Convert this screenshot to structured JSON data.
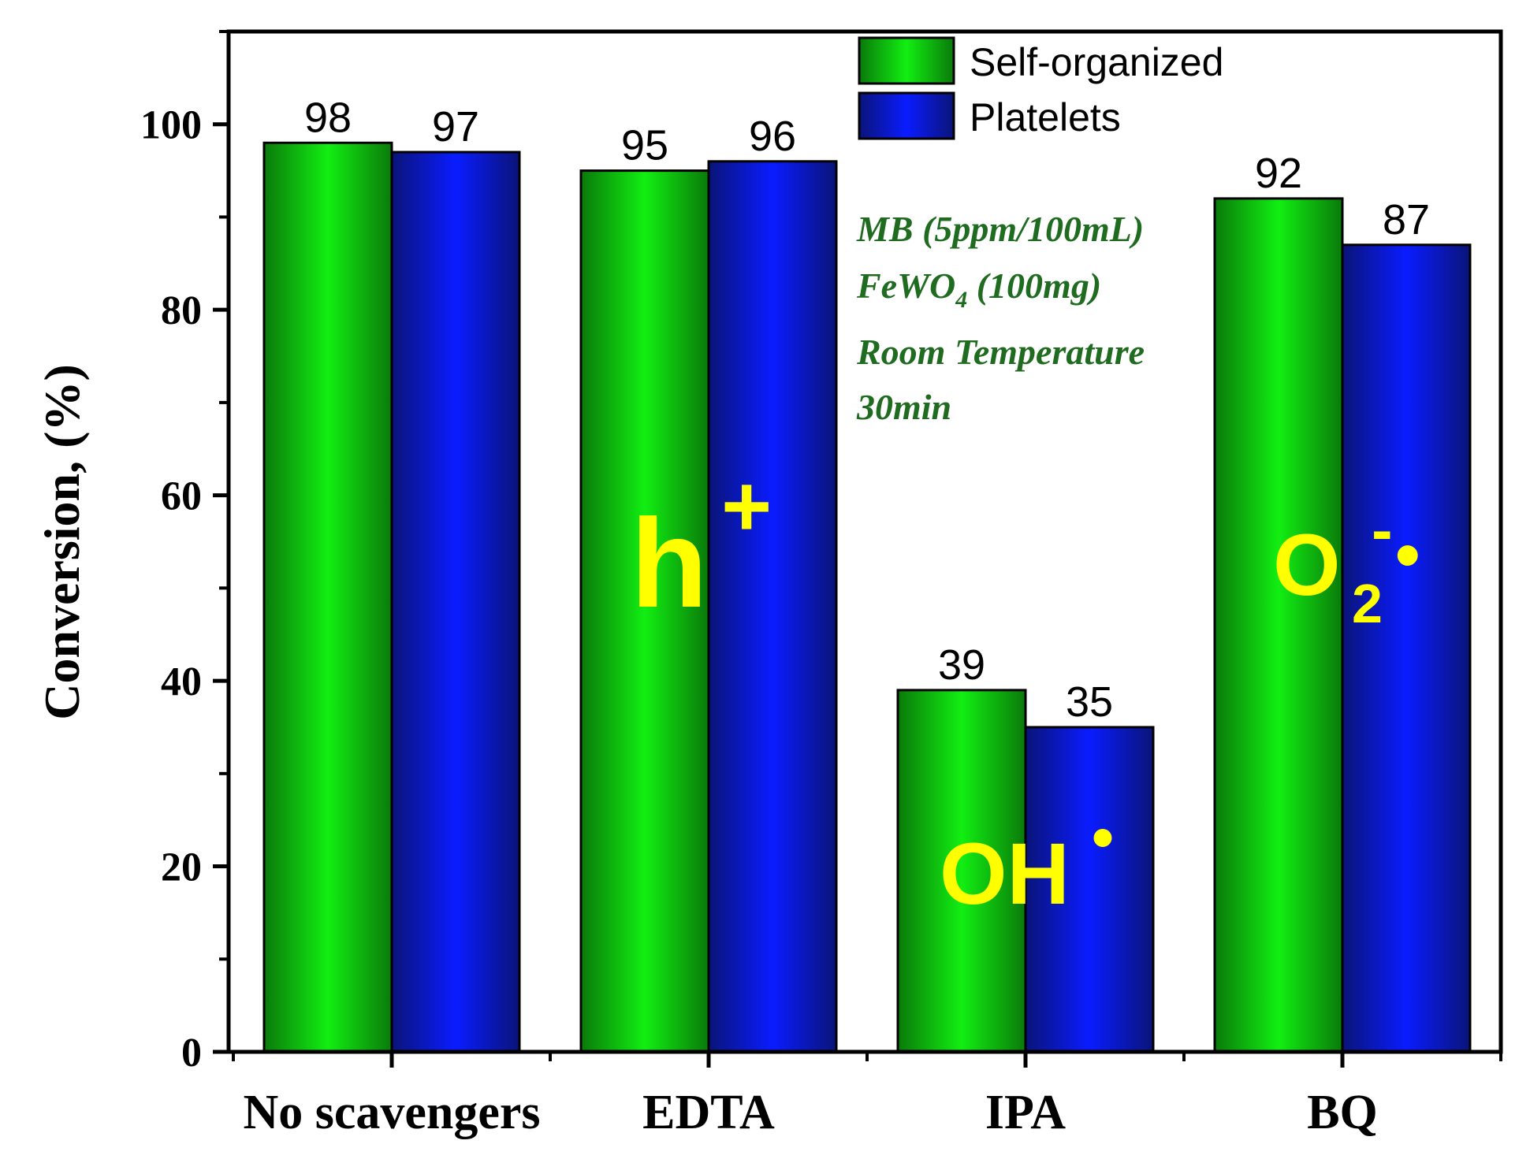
{
  "chart_data": {
    "type": "bar",
    "categories": [
      "No scavengers",
      "EDTA",
      "IPA",
      "BQ"
    ],
    "series": [
      {
        "name": "Self-organized",
        "values": [
          98,
          95,
          39,
          92
        ]
      },
      {
        "name": "Platelets",
        "values": [
          97,
          96,
          35,
          87
        ]
      }
    ],
    "data_labels": [
      [
        "98",
        "95",
        "39",
        "92"
      ],
      [
        "97",
        "96",
        "35",
        "87"
      ]
    ],
    "xlabel": "",
    "ylabel": "Conversion, (%)",
    "ylim": [
      0,
      110
    ],
    "yticks": [
      0,
      20,
      40,
      60,
      80,
      100
    ],
    "grid": false,
    "legend_position": "top-right",
    "colors": {
      "self_organized": "#0fdc0f",
      "self_organized_edge": "#0a7a0a",
      "platelets": "#0a1cf5",
      "platelets_edge": "#0a1478",
      "conditions_text": "#1f6b1f",
      "species_text": "#ffff00"
    },
    "annotations": {
      "conditions": [
        "MB (5ppm/100mL)",
        "FeWO",
        "4",
        " (100mg)",
        "Room Temperature",
        "30min"
      ],
      "species_edta": {
        "base": "h",
        "sup": "+"
      },
      "species_ipa": {
        "base": "OH",
        "sup": "•"
      },
      "species_bq": {
        "base": "O",
        "sub": "2",
        "sup": "-",
        "dot": "•"
      }
    }
  }
}
